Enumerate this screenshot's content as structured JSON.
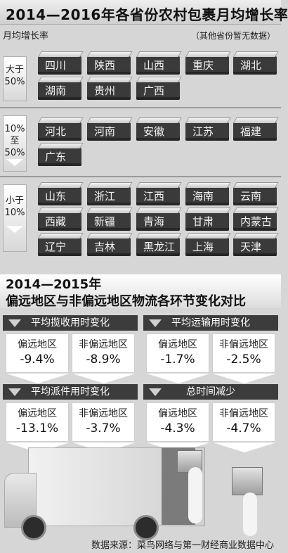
{
  "title": "2014—2016年各省份农村包裹月均增长率",
  "axis_label": "月均增长率",
  "note": "（其他省份暂无数据）",
  "bands": [
    {
      "label_line1": "大于",
      "label_line2": "50%",
      "provinces": [
        "四川",
        "陕西",
        "山西",
        "重庆",
        "湖北",
        "湖南",
        "贵州",
        "广西"
      ]
    },
    {
      "label_line1": "10%",
      "label_mid": "至",
      "label_line2": "50%",
      "provinces": [
        "河北",
        "河南",
        "安徽",
        "江苏",
        "福建",
        "广东"
      ]
    },
    {
      "label_line1": "小于",
      "label_line2": "10%",
      "provinces": [
        "山东",
        "浙江",
        "江西",
        "海南",
        "云南",
        "西藏",
        "新疆",
        "青海",
        "甘肃",
        "内蒙古",
        "辽宁",
        "吉林",
        "黑龙江",
        "上海",
        "天津"
      ]
    }
  ],
  "section2": {
    "line1": "2014—2015年",
    "line2": "偏远地区与非偏远地区物流各环节变化对比"
  },
  "panels": [
    {
      "title": "平均揽收用时变化",
      "remote_label": "偏远地区",
      "remote_value": "-9.4%",
      "nonremote_label": "非偏远地区",
      "nonremote_value": "-8.9%"
    },
    {
      "title": "平均运输用时变化",
      "remote_label": "偏远地区",
      "remote_value": "-1.7%",
      "nonremote_label": "非偏远地区",
      "nonremote_value": "-2.5%"
    },
    {
      "title": "平均派件用时变化",
      "remote_label": "偏远地区",
      "remote_value": "-13.1%",
      "nonremote_label": "非偏远地区",
      "nonremote_value": "-3.7%"
    },
    {
      "title": "总时间减少",
      "remote_label": "偏远地区",
      "remote_value": "-4.3%",
      "nonremote_label": "非偏远地区",
      "nonremote_value": "-4.7%"
    }
  ],
  "source": "数据来源：菜鸟网络与第一财经商业数据中心"
}
